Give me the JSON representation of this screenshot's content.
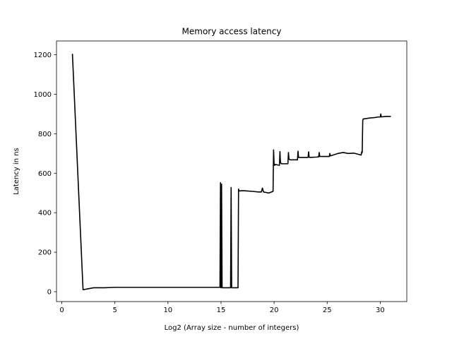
{
  "chart_data": {
    "type": "line",
    "title": "Memory access latency",
    "xlabel": "Log2 (Array size - number of integers)",
    "ylabel": "Latency in ns",
    "xlim": [
      -0.5,
      32.5
    ],
    "ylim": [
      -50,
      1270
    ],
    "xticks": [
      0,
      5,
      10,
      15,
      20,
      25,
      30
    ],
    "yticks": [
      0,
      200,
      400,
      600,
      800,
      1000,
      1200
    ],
    "grid": false,
    "line_color": "#000000",
    "series": [
      {
        "x": [
          1,
          2,
          2.5,
          3,
          4,
          5,
          6,
          7,
          8,
          9,
          10,
          11,
          12,
          13,
          14,
          14.9,
          14.95,
          15.0,
          15.05,
          15.1,
          15.9,
          15.95,
          16.0,
          16.05,
          16.1,
          16.6,
          16.65,
          16.7,
          17,
          17.5,
          18,
          18.5,
          18.8,
          18.9,
          19.0,
          19.2,
          19.5,
          19.9,
          19.95,
          20.0,
          20.05,
          20.1,
          20.5,
          20.55,
          20.6,
          20.65,
          20.7,
          21.0,
          21.3,
          21.35,
          21.4,
          21.45,
          21.5,
          22.0,
          22.2,
          22.25,
          22.3,
          22.35,
          22.4,
          23.0,
          23.2,
          23.25,
          23.3,
          23.35,
          24.0,
          24.2,
          24.25,
          24.3,
          25.0,
          25.2,
          25.25,
          25.3,
          26.0,
          26.5,
          27.0,
          27.5,
          28.0,
          28.2,
          28.25,
          28.3,
          28.35,
          28.4,
          28.8,
          29.0,
          29.5,
          29.8,
          30.0,
          30.05,
          30.1,
          30.5,
          31.0
        ],
        "y": [
          1205,
          10,
          15,
          20,
          20,
          22,
          22,
          22,
          22,
          22,
          22,
          22,
          22,
          22,
          22,
          22,
          552,
          20,
          545,
          20,
          20,
          528,
          20,
          20,
          20,
          20,
          520,
          510,
          512,
          510,
          508,
          505,
          505,
          525,
          505,
          503,
          500,
          508,
          718,
          645,
          640,
          645,
          640,
          710,
          655,
          650,
          648,
          648,
          648,
          705,
          672,
          670,
          668,
          668,
          668,
          712,
          680,
          680,
          680,
          680,
          680,
          708,
          682,
          680,
          682,
          683,
          705,
          685,
          685,
          685,
          700,
          688,
          700,
          705,
          700,
          702,
          695,
          692,
          708,
          705,
          868,
          875,
          878,
          880,
          882,
          885,
          885,
          900,
          885,
          888,
          888
        ]
      }
    ]
  }
}
